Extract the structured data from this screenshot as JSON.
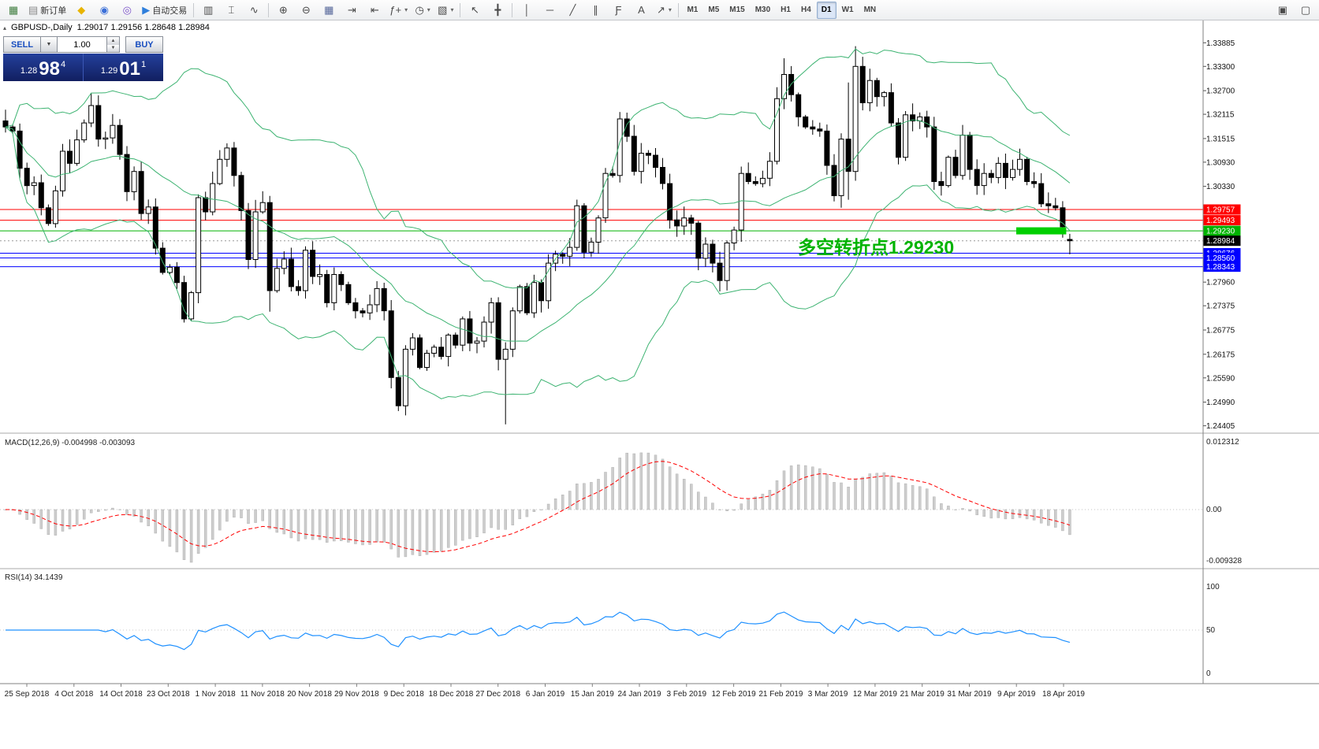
{
  "toolbar": {
    "items": [
      {
        "type": "btn",
        "name": "new-chart-button",
        "glyph": "▦",
        "color": "#3f7d3f"
      },
      {
        "type": "btn",
        "name": "new-order-button",
        "glyph": "▤",
        "color": "#888",
        "label": "新订单"
      },
      {
        "type": "btn",
        "name": "metaeditor-button",
        "glyph": "◆",
        "color": "#e8b400"
      },
      {
        "type": "btn",
        "name": "profile-button",
        "glyph": "◉",
        "color": "#3a6fd8"
      },
      {
        "type": "btn",
        "name": "community-button",
        "glyph": "◎",
        "color": "#7b52c9"
      },
      {
        "type": "btn",
        "name": "autotrade-button",
        "glyph": "▶",
        "color": "#2f7fdc",
        "label": "自动交易"
      },
      {
        "type": "sep"
      },
      {
        "type": "btn",
        "name": "chart-bars-button",
        "glyph": "▥"
      },
      {
        "type": "btn",
        "name": "chart-candles-button",
        "glyph": "⌶"
      },
      {
        "type": "btn",
        "name": "chart-line-button",
        "glyph": "∿"
      },
      {
        "type": "sep"
      },
      {
        "type": "btn",
        "name": "zoom-in-button",
        "glyph": "⊕"
      },
      {
        "type": "btn",
        "name": "zoom-out-button",
        "glyph": "⊖"
      },
      {
        "type": "btn",
        "name": "tile-windows-button",
        "glyph": "▦",
        "color": "#556699"
      },
      {
        "type": "btn",
        "name": "auto-scroll-button",
        "glyph": "⇥"
      },
      {
        "type": "btn",
        "name": "chart-shift-button",
        "glyph": "⇤"
      },
      {
        "type": "btn",
        "name": "indicators-button",
        "glyph": "ƒ+",
        "caret": true
      },
      {
        "type": "btn",
        "name": "periods-button",
        "glyph": "◷",
        "caret": true
      },
      {
        "type": "btn",
        "name": "templates-button",
        "glyph": "▧",
        "caret": true
      },
      {
        "type": "sep"
      },
      {
        "type": "btn",
        "name": "cursor-button",
        "glyph": "↖"
      },
      {
        "type": "btn",
        "name": "crosshair-button",
        "glyph": "╋"
      },
      {
        "type": "sep"
      },
      {
        "type": "btn",
        "name": "vertical-line-button",
        "glyph": "│"
      },
      {
        "type": "btn",
        "name": "horizontal-line-button",
        "glyph": "─"
      },
      {
        "type": "btn",
        "name": "trendline-button",
        "glyph": "╱"
      },
      {
        "type": "btn",
        "name": "channel-button",
        "glyph": "∥"
      },
      {
        "type": "btn",
        "name": "fibonacci-button",
        "glyph": "Ƒ"
      },
      {
        "type": "btn",
        "name": "text-button",
        "glyph": "A"
      },
      {
        "type": "btn",
        "name": "arrows-button",
        "glyph": "↗",
        "caret": true
      },
      {
        "type": "sep"
      }
    ],
    "timeframes": [
      "M1",
      "M5",
      "M15",
      "M30",
      "H1",
      "H4",
      "D1",
      "W1",
      "MN"
    ],
    "active_timeframe": "D1",
    "right_items": [
      {
        "type": "btn",
        "name": "arrange-windows-button",
        "glyph": "▣"
      },
      {
        "type": "btn",
        "name": "docking-button",
        "glyph": "▢"
      }
    ]
  },
  "chart": {
    "title": "GBPUSD-,Daily",
    "ohlc": "1.29017 1.29156 1.28648 1.28984",
    "collapse_arrow": "▴"
  },
  "trade_panel": {
    "sell_label": "SELL",
    "buy_label": "BUY",
    "volume": "1.00",
    "sell": {
      "small": "1.28",
      "big": "98",
      "sup": "4"
    },
    "buy": {
      "small": "1.29",
      "big": "01",
      "sup": "1"
    }
  },
  "annotation": {
    "text": "多空转折点1.29230",
    "color": "#00b300"
  },
  "price_scale": {
    "ticks": [
      "1.33885",
      "1.33300",
      "1.32700",
      "1.32115",
      "1.31515",
      "1.30930",
      "1.30330",
      "1.27960",
      "1.27375",
      "1.26775",
      "1.26175",
      "1.25590",
      "1.24990",
      "1.24405"
    ],
    "current_label": "1.28984",
    "current_price": 1.28984
  },
  "hlines": [
    {
      "price": 1.29757,
      "color": "#ff0000",
      "label": "1.29757"
    },
    {
      "price": 1.29493,
      "color": "#ff0000",
      "label": "1.29493"
    },
    {
      "price": 1.2923,
      "color": "#00b300",
      "label": "1.29230"
    },
    {
      "price": 1.28676,
      "color": "#0000ff",
      "label": "1.28676"
    },
    {
      "price": 1.2856,
      "color": "#0000ff",
      "label": "1.28560"
    },
    {
      "price": 1.28343,
      "color": "#0000ff",
      "label": "1.28343"
    }
  ],
  "zone": {
    "from_idx": 142,
    "to_idx": 148,
    "price": 1.2923,
    "color": "#00cf00"
  },
  "chart_data": {
    "type": "candlestick",
    "symbol": "GBPUSD-",
    "timeframe": "Daily",
    "last_ohlc": {
      "open": 1.29017,
      "high": 1.29156,
      "low": 1.28648,
      "close": 1.28984
    },
    "y_range": [
      1.243,
      1.3428
    ],
    "closes": [
      1.318,
      1.317,
      1.3078,
      1.3035,
      1.3042,
      1.298,
      1.2941,
      1.3022,
      1.312,
      1.309,
      1.3148,
      1.319,
      1.3233,
      1.315,
      1.3153,
      1.3184,
      1.3112,
      1.302,
      1.307,
      1.2966,
      1.2982,
      1.288,
      1.282,
      1.2833,
      1.2795,
      1.2705,
      1.277,
      1.3005,
      1.297,
      1.304,
      1.31,
      1.3128,
      1.306,
      1.2973,
      1.2852,
      1.297,
      1.2993,
      1.2775,
      1.283,
      1.2853,
      1.2785,
      1.2775,
      1.2875,
      1.281,
      1.2815,
      1.2745,
      1.2815,
      1.279,
      1.2745,
      1.2725,
      1.272,
      1.274,
      1.278,
      1.2725,
      1.256,
      1.249,
      1.263,
      1.2658,
      1.2585,
      1.262,
      1.2635,
      1.2612,
      1.2665,
      1.264,
      1.2705,
      1.2645,
      1.265,
      1.2697,
      1.2745,
      1.2605,
      1.263,
      1.2725,
      1.2785,
      1.272,
      1.2795,
      1.275,
      1.2843,
      1.2865,
      1.286,
      1.2882,
      1.2985,
      1.287,
      1.2895,
      1.2955,
      1.3065,
      1.306,
      1.32,
      1.3157,
      1.307,
      1.3115,
      1.311,
      1.308,
      1.304,
      1.295,
      1.2935,
      1.2955,
      1.2942,
      1.2855,
      1.289,
      1.2843,
      1.28,
      1.2893,
      1.2925,
      1.3065,
      1.3045,
      1.304,
      1.3053,
      1.3095,
      1.325,
      1.331,
      1.326,
      1.3205,
      1.318,
      1.3175,
      1.317,
      1.3085,
      1.301,
      1.315,
      1.307,
      1.333,
      1.324,
      1.3295,
      1.3255,
      1.3265,
      1.319,
      1.3105,
      1.321,
      1.3195,
      1.3205,
      1.318,
      1.3045,
      1.3035,
      1.3105,
      1.306,
      1.316,
      1.3075,
      1.3035,
      1.3065,
      1.3055,
      1.309,
      1.3055,
      1.3075,
      1.31,
      1.3045,
      1.304,
      1.299,
      1.2985,
      1.298,
      1.2933,
      1.28984
    ],
    "overrides": {
      "25": {
        "l": 1.2696
      },
      "37": {
        "l": 1.2723
      },
      "55": {
        "l": 1.2477
      },
      "70": {
        "l": 1.2444
      },
      "86": {
        "h": 1.3217
      },
      "100": {
        "l": 1.2773
      },
      "109": {
        "h": 1.335
      },
      "118": {
        "h": 1.329,
        "l": 1.3
      },
      "119": {
        "h": 1.338
      },
      "149": {
        "o": 1.29017,
        "h": 1.29156,
        "l": 1.28648,
        "c": 1.28984
      }
    },
    "x_dates": [
      "25 Sep 2018",
      "4 Oct 2018",
      "14 Oct 2018",
      "23 Oct 2018",
      "1 Nov 2018",
      "11 Nov 2018",
      "20 Nov 2018",
      "29 Nov 2018",
      "9 Dec 2018",
      "18 Dec 2018",
      "27 Dec 2018",
      "6 Jan 2019",
      "15 Jan 2019",
      "24 Jan 2019",
      "3 Feb 2019",
      "12 Feb 2019",
      "21 Feb 2019",
      "3 Mar 2019",
      "12 Mar 2019",
      "21 Mar 2019",
      "31 Mar 2019",
      "9 Apr 2019",
      "18 Apr 2019"
    ],
    "indicators": [
      {
        "name": "Bollinger Bands",
        "period": 20,
        "deviation": 2,
        "color": "#3cb371"
      },
      {
        "name": "MACD",
        "params": "12,26,9",
        "values": [
          -0.004998,
          -0.003093
        ],
        "label": "MACD(12,26,9) -0.004998 -0.003093",
        "axis_labels": [
          "0.012312",
          "0.00",
          "-0.009328"
        ],
        "histogram_color": "#cdcdcd",
        "signal_color": "#ff0000"
      },
      {
        "name": "RSI",
        "period": 14,
        "value": 34.1439,
        "label": "RSI(14) 34.1439",
        "axis_labels": [
          "100",
          "50",
          "0"
        ],
        "line_color": "#1e90ff"
      }
    ]
  }
}
